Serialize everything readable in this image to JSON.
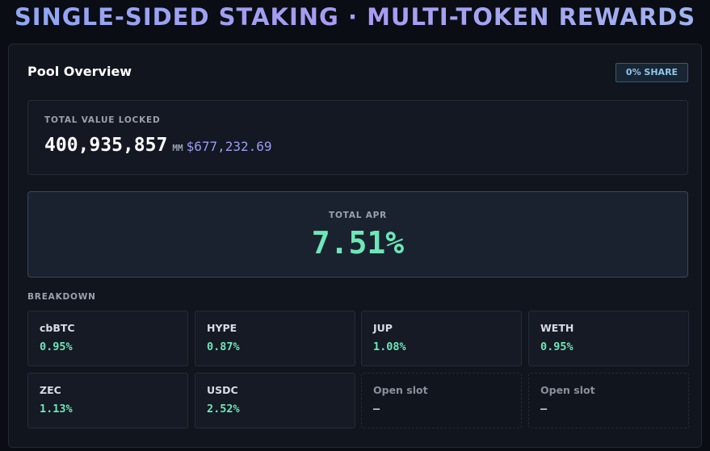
{
  "header": {
    "title": "SINGLE-SIDED STAKING · MULTI-TOKEN REWARDS"
  },
  "panel": {
    "title": "Pool Overview",
    "badge": "0% SHARE",
    "tvl": {
      "label": "TOTAL VALUE LOCKED",
      "amount": "400,935,857",
      "unit": "MM",
      "usd": "$677,232.69"
    },
    "apr": {
      "label": "TOTAL APR",
      "value": "7.51%"
    },
    "breakdown": {
      "label": "BREAKDOWN",
      "slots": [
        {
          "name": "cbBTC",
          "value": "0.95%"
        },
        {
          "name": "HYPE",
          "value": "0.87%"
        },
        {
          "name": "JUP",
          "value": "1.08%"
        },
        {
          "name": "WETH",
          "value": "0.95%"
        },
        {
          "name": "ZEC",
          "value": "1.13%"
        },
        {
          "name": "USDC",
          "value": "2.52%"
        },
        {
          "name": "Open slot",
          "value": "—"
        },
        {
          "name": "Open slot",
          "value": "—"
        }
      ]
    }
  }
}
